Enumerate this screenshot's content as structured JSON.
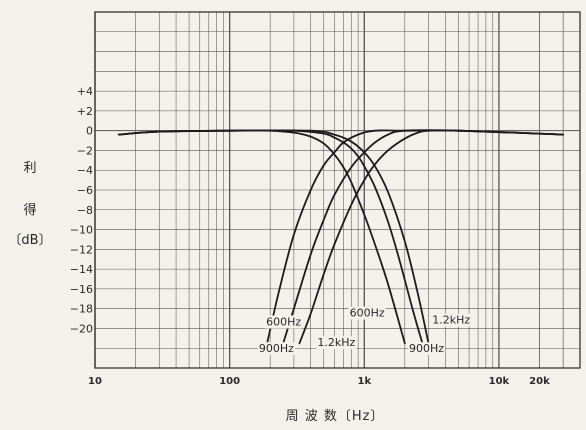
{
  "chart_data": {
    "type": "line",
    "x_scale": "log",
    "xlim": [
      10,
      40000
    ],
    "ylim": [
      -24,
      12
    ],
    "grid": true,
    "xlabel": "周 波 数〔Hz〕",
    "ylabel_lines": [
      "利",
      "得",
      "〔dB〕"
    ],
    "x_ticks": [
      {
        "value": 10,
        "label": "10"
      },
      {
        "value": 100,
        "label": "100"
      },
      {
        "value": 1000,
        "label": "1k"
      },
      {
        "value": 10000,
        "label": "10k"
      },
      {
        "value": 20000,
        "label": "20k"
      }
    ],
    "y_ticks": [
      {
        "value": 4,
        "label": "+4"
      },
      {
        "value": 2,
        "label": "+2"
      },
      {
        "value": 0,
        "label": "0"
      },
      {
        "value": -2,
        "label": "−2"
      },
      {
        "value": -4,
        "label": "−4"
      },
      {
        "value": -6,
        "label": "−6"
      },
      {
        "value": -8,
        "label": "−8"
      },
      {
        "value": -10,
        "label": "−10"
      },
      {
        "value": -12,
        "label": "−12"
      },
      {
        "value": -14,
        "label": "−14"
      },
      {
        "value": -16,
        "label": "−16"
      },
      {
        "value": -18,
        "label": "−18"
      },
      {
        "value": -20,
        "label": "−20"
      }
    ],
    "series": [
      {
        "name": "600Hz",
        "kind": "low-pass",
        "x": [
          15,
          30,
          100,
          200,
          300,
          400,
          500,
          600,
          700,
          800,
          1000,
          1200,
          1500,
          2000
        ],
        "y": [
          -0.4,
          -0.1,
          0,
          0,
          -0.2,
          -0.6,
          -1.3,
          -2.4,
          -3.7,
          -5.2,
          -8.5,
          -11.5,
          -15.5,
          -21.5
        ]
      },
      {
        "name": "900Hz",
        "kind": "low-pass",
        "x": [
          15,
          30,
          100,
          300,
          500,
          600,
          700,
          800,
          900,
          1000,
          1200,
          1500,
          1800,
          2300,
          2700
        ],
        "y": [
          -0.4,
          -0.1,
          0,
          0,
          -0.3,
          -0.7,
          -1.2,
          -1.8,
          -2.6,
          -3.6,
          -5.7,
          -9.2,
          -12.8,
          -18.2,
          -21.5
        ]
      },
      {
        "name": "1.2kHz",
        "kind": "low-pass",
        "x": [
          15,
          30,
          100,
          400,
          600,
          800,
          1000,
          1200,
          1500,
          2000,
          2500,
          3000
        ],
        "y": [
          -0.4,
          -0.1,
          0,
          0,
          -0.4,
          -1.1,
          -2.2,
          -3.6,
          -6.2,
          -11.2,
          -16.5,
          -21.5
        ]
      },
      {
        "name": "600Hz",
        "kind": "high-pass",
        "x": [
          190,
          230,
          300,
          400,
          500,
          600,
          700,
          900,
          1200,
          2000,
          5000,
          30000
        ],
        "y": [
          -21.5,
          -16.5,
          -10.5,
          -6,
          -3.5,
          -2.2,
          -1.2,
          -0.4,
          0,
          0,
          0,
          -0.4
        ]
      },
      {
        "name": "900Hz",
        "kind": "high-pass",
        "x": [
          250,
          300,
          400,
          500,
          600,
          800,
          1000,
          1200,
          1500,
          2000,
          5000,
          30000
        ],
        "y": [
          -21.5,
          -18,
          -12.5,
          -9,
          -6.5,
          -3.7,
          -2.2,
          -1.2,
          -0.4,
          0,
          0,
          -0.4
        ]
      },
      {
        "name": "1.2kHz",
        "kind": "high-pass",
        "x": [
          330,
          400,
          500,
          600,
          800,
          1000,
          1200,
          1500,
          2000,
          2500,
          3000,
          5000,
          30000
        ],
        "y": [
          -21.5,
          -18.5,
          -14.5,
          -11.5,
          -7.5,
          -5,
          -3.4,
          -2,
          -0.8,
          -0.2,
          0,
          0,
          -0.4
        ]
      }
    ],
    "series_labels": [
      {
        "text": "600Hz",
        "x": 340,
        "y": -19.7,
        "anchor": "end"
      },
      {
        "text": "900Hz",
        "x": 300,
        "y": -22.4,
        "anchor": "end"
      },
      {
        "text": "1.2kHz",
        "x": 620,
        "y": -21.8,
        "anchor": "middle"
      },
      {
        "text": "600Hz",
        "x": 1050,
        "y": -18.8,
        "anchor": "middle"
      },
      {
        "text": "900Hz",
        "x": 2900,
        "y": -22.4,
        "anchor": "middle"
      },
      {
        "text": "1.2kHz",
        "x": 3200,
        "y": -19.5,
        "anchor": "start"
      }
    ]
  }
}
